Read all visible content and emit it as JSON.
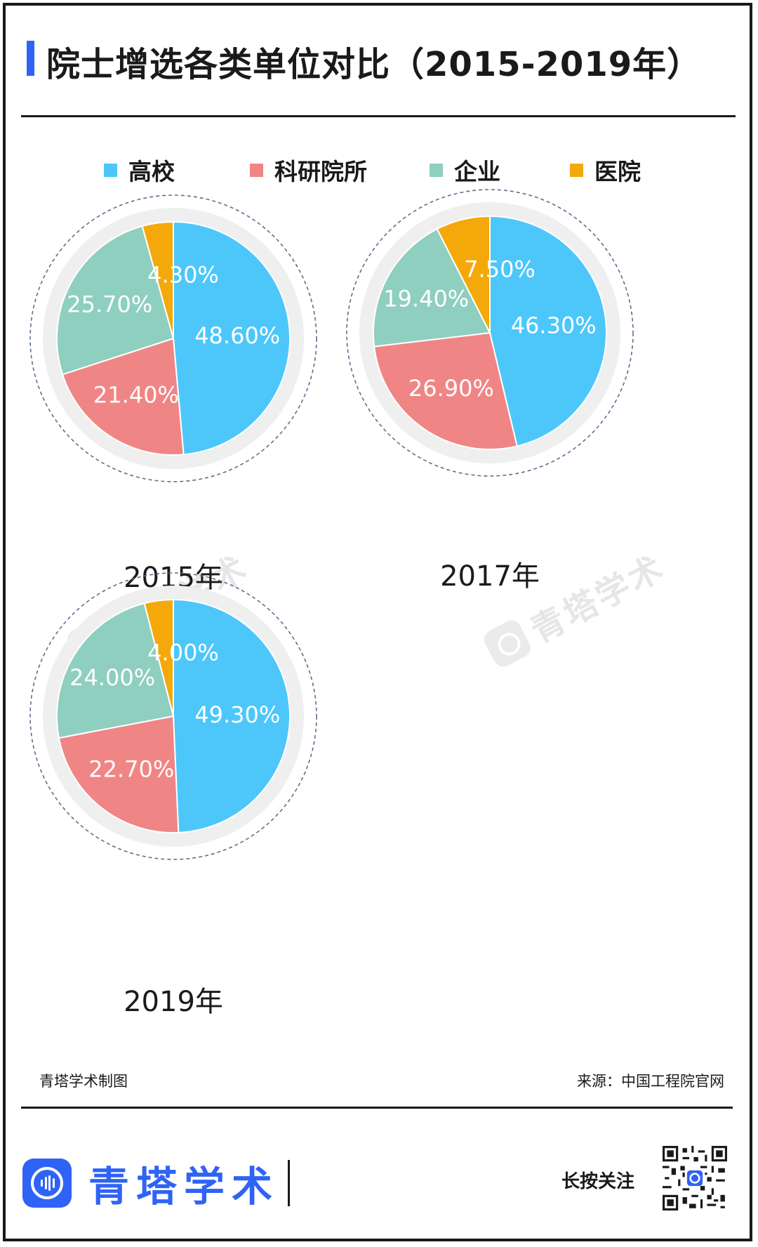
{
  "title": "院士增选各类单位对比（2015-2019年）",
  "legend": [
    {
      "label": "高校",
      "color": "#4dc7fa"
    },
    {
      "label": "科研院所",
      "color": "#f08585"
    },
    {
      "label": "企业",
      "color": "#8ecfbf"
    },
    {
      "label": "医院",
      "color": "#f5a80a"
    }
  ],
  "chart_data": [
    {
      "type": "pie",
      "title": "2015年",
      "labels": [
        "高校",
        "科研院所",
        "企业",
        "医院"
      ],
      "values": [
        48.6,
        21.4,
        25.7,
        4.3
      ],
      "value_labels": [
        "48.60%",
        "21.40%",
        "25.70%",
        "4.30%"
      ]
    },
    {
      "type": "pie",
      "title": "2017年",
      "labels": [
        "高校",
        "科研院所",
        "企业",
        "医院"
      ],
      "values": [
        46.3,
        26.9,
        19.4,
        7.5
      ],
      "value_labels": [
        "46.30%",
        "26.90%",
        "19.40%",
        "7.50%"
      ]
    },
    {
      "type": "pie",
      "title": "2019年",
      "labels": [
        "高校",
        "科研院所",
        "企业",
        "医院"
      ],
      "values": [
        49.3,
        22.7,
        24.0,
        4.0
      ],
      "value_labels": [
        "49.30%",
        "22.70%",
        "24.00%",
        "4.00%"
      ]
    }
  ],
  "watermark_text": "青塔学术",
  "footer": {
    "credit": "青塔学术制图",
    "source": "来源：中国工程院官网",
    "brand_name": "青塔学术",
    "cta": "长按关注"
  },
  "icons": {
    "brand_logo": "qingta-logo-icon",
    "qr_code": "qr-code-icon"
  }
}
